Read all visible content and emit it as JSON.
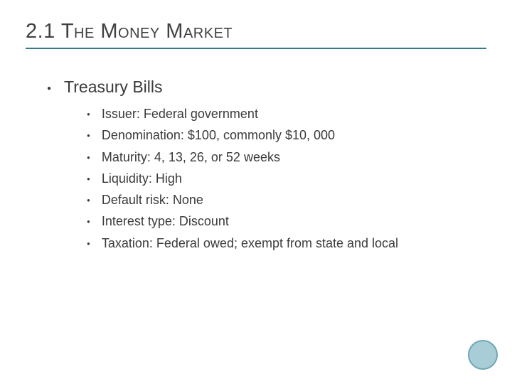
{
  "title": "2.1 The Money Market",
  "main_item": "Treasury Bills",
  "sub_items": [
    "Issuer: Federal government",
    "Denomination: $100, commonly $10, 000",
    "Maturity: 4, 13, 26, or 52 weeks",
    "Liquidity: High",
    "Default risk: None",
    "Interest type: Discount",
    "Taxation: Federal owed; exempt from state and local"
  ],
  "colors": {
    "title_rule": "#3a7a8c",
    "text": "#3a3a3a",
    "circle_fill": "#a8cdd6",
    "circle_border": "#6fa8b5",
    "background": "#ffffff"
  },
  "typography": {
    "title_fontsize": 29,
    "l1_fontsize": 23,
    "l2_fontsize": 18,
    "font_family": "Arial"
  }
}
